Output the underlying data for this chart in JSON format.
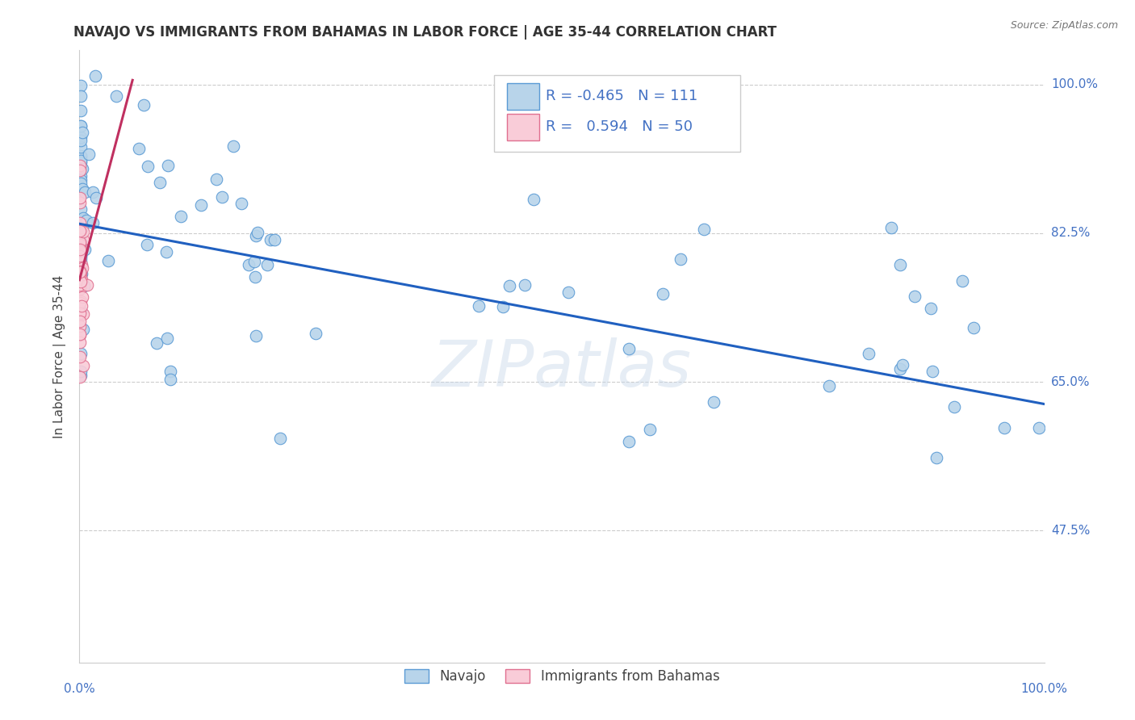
{
  "title": "NAVAJO VS IMMIGRANTS FROM BAHAMAS IN LABOR FORCE | AGE 35-44 CORRELATION CHART",
  "source": "Source: ZipAtlas.com",
  "ylabel": "In Labor Force | Age 35-44",
  "ylabel_ticks": [
    "100.0%",
    "82.5%",
    "65.0%",
    "47.5%"
  ],
  "watermark": "ZIPatlas",
  "legend_navajo_R": "-0.465",
  "legend_navajo_N": "111",
  "legend_bahamas_R": "0.594",
  "legend_bahamas_N": "50",
  "navajo_color": "#b8d4ea",
  "navajo_edge_color": "#5b9bd5",
  "bahamas_color": "#f9ccd8",
  "bahamas_edge_color": "#e07090",
  "navajo_line_color": "#2060c0",
  "bahamas_line_color": "#c03060",
  "grid_color": "#cccccc",
  "background_color": "#ffffff",
  "title_color": "#333333",
  "source_color": "#777777",
  "axis_label_color": "#4472c4",
  "legend_text_color": "#1a1a1a",
  "legend_border_color": "#cccccc",
  "xlim": [
    0.0,
    1.0
  ],
  "ylim": [
    0.32,
    1.04
  ],
  "nav_line_x0": 0.0,
  "nav_line_x1": 1.0,
  "nav_line_y0": 0.836,
  "nav_line_y1": 0.624,
  "bah_line_x0": 0.0,
  "bah_line_x1": 0.055,
  "bah_line_y0": 0.77,
  "bah_line_y1": 1.005
}
